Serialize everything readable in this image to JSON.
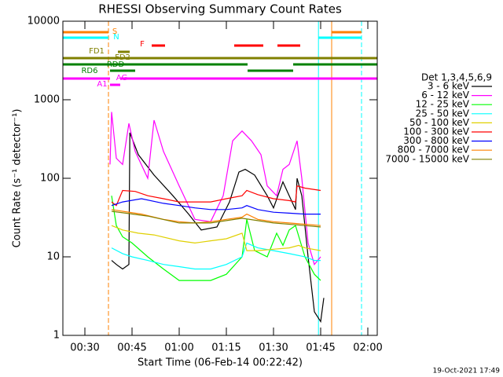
{
  "chart_data": {
    "type": "line",
    "title": "RHESSI Observing Summary Count Rates",
    "x_label": "Start Time (06-Feb-14 00:22:42)",
    "y_label": "Count Rate (s⁻¹ detector⁻¹)",
    "footer": "19-Oct-2021 17:49",
    "legend_title": "Det 1,3,4,5,6,9",
    "log_y": true,
    "xlim": [
      23,
      123
    ],
    "ylim": [
      1,
      10000
    ],
    "xticks": [
      {
        "value": 30,
        "label": "00:30"
      },
      {
        "value": 45,
        "label": "00:45"
      },
      {
        "value": 60,
        "label": "01:00"
      },
      {
        "value": 75,
        "label": "01:15"
      },
      {
        "value": 90,
        "label": "01:30"
      },
      {
        "value": 105,
        "label": "01:45"
      },
      {
        "value": 120,
        "label": "02:00"
      }
    ],
    "yticks": [
      1,
      10,
      100,
      1000,
      10000
    ],
    "series": [
      {
        "name": "3 - 6 keV",
        "color": "#000000",
        "x": [
          38.5,
          40,
          42,
          44,
          44.3,
          47,
          52,
          58,
          63,
          67,
          72,
          76,
          79,
          81,
          84,
          88,
          90,
          92,
          93,
          95,
          97,
          97.5,
          99,
          101,
          103,
          105,
          106
        ],
        "values": [
          9,
          8,
          7,
          8,
          380,
          200,
          110,
          60,
          35,
          22,
          24,
          50,
          120,
          130,
          110,
          60,
          42,
          70,
          90,
          60,
          40,
          100,
          60,
          10,
          2,
          1.5,
          3
        ]
      },
      {
        "name": "6 - 12 keV",
        "color": "#ff00ff",
        "x": [
          38,
          38.5,
          40,
          42,
          44,
          46,
          50,
          52,
          55,
          60,
          65,
          70,
          74,
          77,
          80,
          83,
          86,
          88,
          91,
          93,
          95,
          97.5,
          99,
          101,
          103,
          105
        ],
        "values": [
          150,
          700,
          180,
          150,
          500,
          220,
          100,
          550,
          220,
          80,
          30,
          28,
          60,
          300,
          400,
          300,
          200,
          80,
          60,
          130,
          150,
          300,
          100,
          15,
          8,
          10
        ]
      },
      {
        "name": "12 - 25 keV",
        "color": "#00ff00",
        "x": [
          38.5,
          40,
          42,
          45,
          50,
          55,
          60,
          65,
          70,
          75,
          80,
          81.5,
          84,
          88,
          91,
          93,
          95,
          97,
          100,
          103,
          105
        ],
        "values": [
          60,
          25,
          18,
          15,
          10,
          7,
          5,
          5,
          5,
          6,
          10,
          30,
          12,
          10,
          20,
          14,
          22,
          25,
          10,
          6,
          5
        ]
      },
      {
        "name": "25 - 50 keV",
        "color": "#00ffff",
        "x": [
          38.5,
          42,
          45,
          50,
          55,
          60,
          65,
          70,
          75,
          80,
          81.5,
          85,
          90,
          95,
          100,
          103,
          105
        ],
        "values": [
          13,
          11,
          10,
          9,
          8,
          7.5,
          7,
          7,
          8,
          10,
          15,
          13,
          12,
          11,
          10,
          9,
          9
        ]
      },
      {
        "name": "50 - 100 keV",
        "color": "#e0d000",
        "x": [
          38.5,
          42,
          47,
          52,
          60,
          65,
          70,
          75,
          80,
          81.5,
          85,
          90,
          95,
          98,
          100,
          105
        ],
        "values": [
          25,
          22,
          20,
          19,
          16,
          15,
          16,
          17,
          20,
          12,
          12,
          12.5,
          13,
          14,
          13,
          12
        ]
      },
      {
        "name": "100 - 300 keV",
        "color": "#ff0000",
        "x": [
          38.5,
          40,
          42,
          46,
          50,
          55,
          60,
          65,
          70,
          75,
          80,
          81.5,
          85,
          90,
          95,
          97,
          97.5,
          100,
          105
        ],
        "values": [
          50,
          45,
          70,
          68,
          60,
          55,
          50,
          50,
          50,
          55,
          60,
          70,
          62,
          55,
          52,
          50,
          80,
          75,
          70
        ]
      },
      {
        "name": "300 - 800 keV",
        "color": "#0000ff",
        "x": [
          38.5,
          42,
          48,
          55,
          60,
          65,
          70,
          75,
          80,
          81.5,
          85,
          90,
          95,
          100,
          105
        ],
        "values": [
          45,
          50,
          55,
          48,
          45,
          42,
          40,
          40,
          42,
          45,
          40,
          37,
          36,
          35,
          35
        ]
      },
      {
        "name": "800 - 7000 keV",
        "color": "#ff8000",
        "x": [
          38.5,
          42,
          48,
          55,
          60,
          65,
          70,
          75,
          80,
          81.5,
          85,
          90,
          95,
          100,
          105
        ],
        "values": [
          40,
          38,
          35,
          30,
          28,
          27,
          28,
          30,
          32,
          35,
          30,
          28,
          27,
          26,
          25
        ]
      },
      {
        "name": "7000 - 15000 keV",
        "color": "#808000",
        "x": [
          38.5,
          50,
          60,
          70,
          80,
          90,
          100,
          105
        ],
        "values": [
          38,
          33,
          27,
          27,
          31,
          27,
          25,
          24
        ]
      }
    ],
    "flags": [
      {
        "label": "S",
        "color": "#ff8000",
        "segments": [
          [
            23,
            37.5
          ],
          [
            108.5,
            118
          ]
        ]
      },
      {
        "label": "N",
        "color": "#00ffff",
        "segments": [
          [
            23,
            37.5
          ],
          [
            104.3,
            118
          ]
        ]
      },
      {
        "label": "F",
        "color": "#ff0000",
        "segments": [
          [
            51.25,
            55.5
          ],
          [
            77.5,
            86.75
          ],
          [
            91.25,
            98.5
          ]
        ]
      },
      {
        "label": "FD1",
        "color": "#808000",
        "segments": [
          [
            40.5,
            44.25
          ]
        ]
      },
      {
        "label": "FD2",
        "color": "#808000",
        "segments": [
          [
            23,
            123
          ]
        ]
      },
      {
        "label": "RDD",
        "color": "#008000",
        "segments": [
          [
            23,
            81.75
          ],
          [
            96.25,
            123
          ]
        ]
      },
      {
        "label": "RD6",
        "color": "#008000",
        "segments": [
          [
            38,
            46
          ],
          [
            81.75,
            96.25
          ]
        ]
      },
      {
        "label": "AG",
        "color": "#ff00ff",
        "segments": [
          [
            23,
            38
          ],
          [
            41.25,
            123
          ]
        ]
      },
      {
        "label": "A1",
        "color": "#ff00ff",
        "segments": [
          [
            38,
            41.25
          ]
        ]
      }
    ],
    "markers": [
      {
        "x": 37.5,
        "color": "#ff8000",
        "dashed": true
      },
      {
        "x": 104.3,
        "color": "#00ffff",
        "dashed": false
      },
      {
        "x": 108.5,
        "color": "#ff8000",
        "dashed": false
      },
      {
        "x": 118,
        "color": "#00ffff",
        "dashed": true
      }
    ]
  }
}
